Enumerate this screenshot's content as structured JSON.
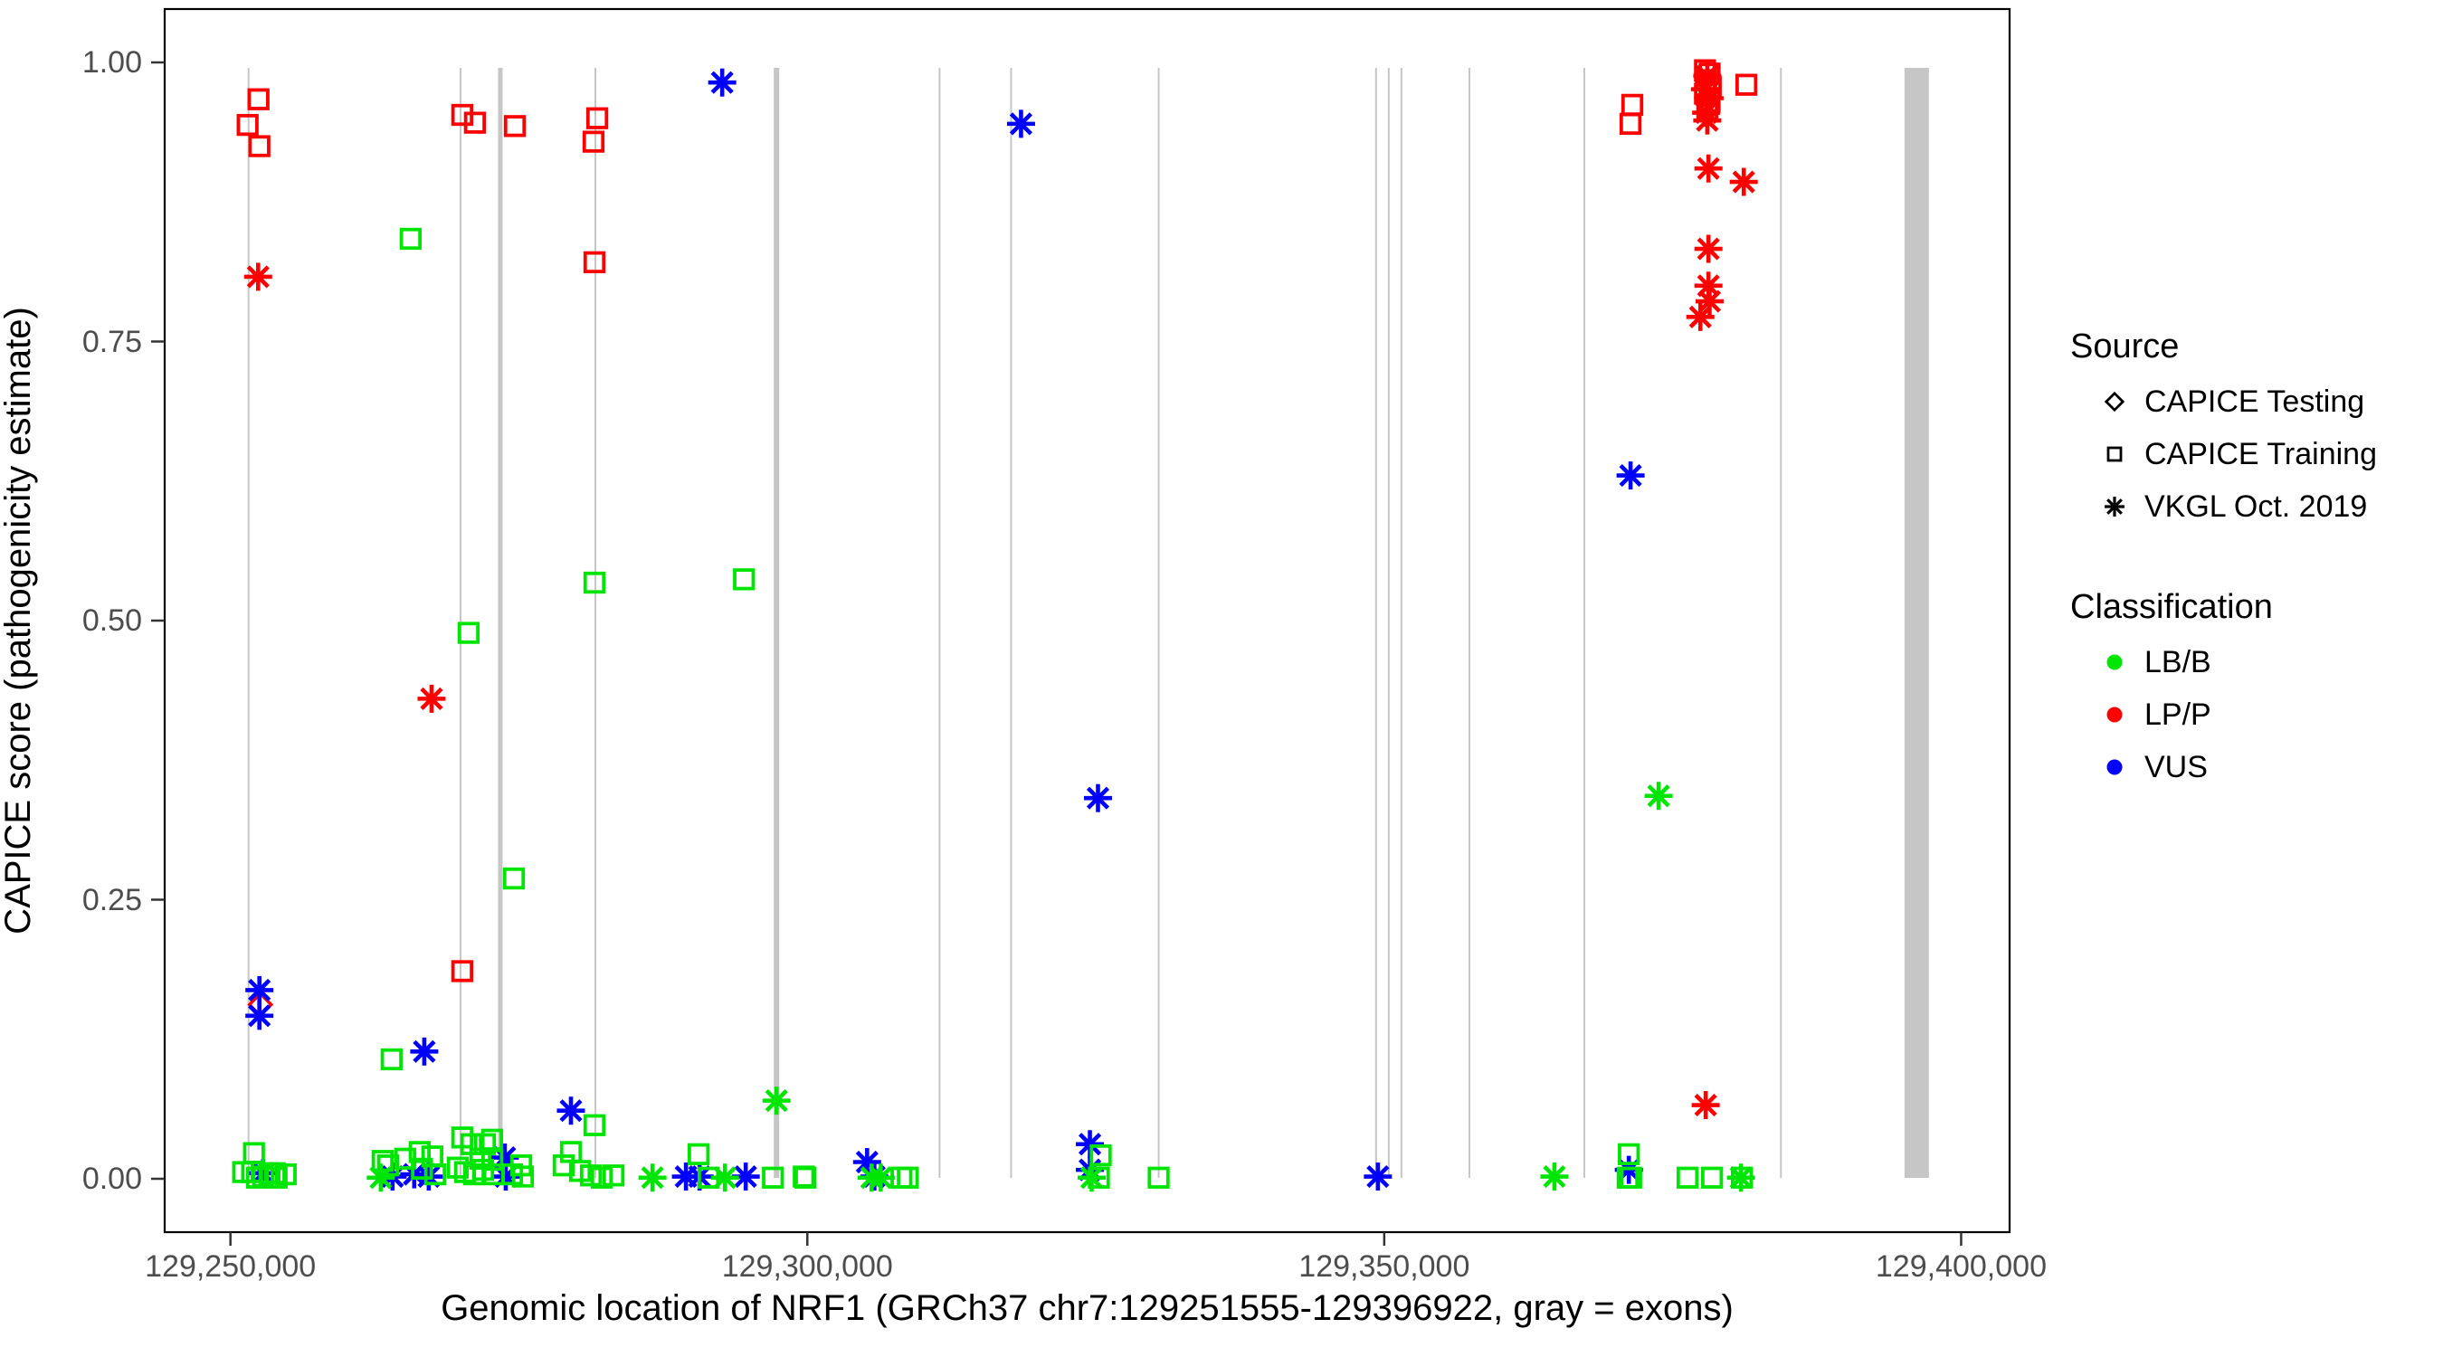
{
  "chart_data": {
    "type": "scatter",
    "xlabel": "Genomic location of NRF1 (GRCh37 chr7:129251555-129396922, gray = exons)",
    "ylabel": "CAPICE score (pathogenicity estimate)",
    "xlim": [
      129244300,
      129404200
    ],
    "ylim": [
      -0.048,
      1.048
    ],
    "grid": "off",
    "x_ticks": [
      {
        "value": 129250000,
        "label": "129,250,000"
      },
      {
        "value": 129300000,
        "label": "129,300,000"
      },
      {
        "value": 129350000,
        "label": "129,350,000"
      },
      {
        "value": 129400000,
        "label": "129,400,000"
      }
    ],
    "y_ticks": [
      {
        "value": 0.0,
        "label": "0.00"
      },
      {
        "value": 0.25,
        "label": "0.25"
      },
      {
        "value": 0.5,
        "label": "0.50"
      },
      {
        "value": 0.75,
        "label": "0.75"
      },
      {
        "value": 1.0,
        "label": "1.00"
      }
    ],
    "legend": {
      "position": "right",
      "source": {
        "title": "Source",
        "items": [
          {
            "label": "CAPICE Testing",
            "marker": "diamond"
          },
          {
            "label": "CAPICE Training",
            "marker": "square"
          },
          {
            "label": "VKGL Oct. 2019",
            "marker": "asterisk"
          }
        ]
      },
      "classification": {
        "title": "Classification",
        "items": [
          {
            "label": "LB/B",
            "color": "#00E504"
          },
          {
            "label": "LP/P",
            "color": "#FF0000"
          },
          {
            "label": "VUS",
            "color": "#0000FF"
          }
        ]
      }
    },
    "colors": {
      "LB/B": "#00E504",
      "LP/P": "#FF0000",
      "VUS": "#0000FF",
      "exon": "#C6C6C6",
      "axis_text": "#4D4D4D",
      "panel_border": "#000000"
    },
    "exons_note": "gray vertical bars = exons; position_bp with pixel width class",
    "exons": [
      {
        "pos": 129251570,
        "w": 2
      },
      {
        "pos": 129269940,
        "w": 2
      },
      {
        "pos": 129273390,
        "w": 5
      },
      {
        "pos": 129281630,
        "w": 2
      },
      {
        "pos": 129297330,
        "w": 6
      },
      {
        "pos": 129311460,
        "w": 2
      },
      {
        "pos": 129317660,
        "w": 2
      },
      {
        "pos": 129330450,
        "w": 2
      },
      {
        "pos": 129349290,
        "w": 2
      },
      {
        "pos": 129350390,
        "w": 2
      },
      {
        "pos": 129351490,
        "w": 2
      },
      {
        "pos": 129357380,
        "w": 2
      },
      {
        "pos": 129367340,
        "w": 2
      },
      {
        "pos": 129384380,
        "w": 2
      },
      {
        "pos": 129396150,
        "w": 27
      }
    ],
    "marker_source_map": {
      "square": "CAPICE Training",
      "asterisk": "VKGL Oct. 2019",
      "diamond": "CAPICE Testing"
    },
    "point_format": [
      "position_bp",
      "capice_score",
      "marker",
      "classification"
    ],
    "points": [
      [
        129252430,
        0.967,
        "square",
        "LP/P"
      ],
      [
        129251490,
        0.944,
        "square",
        "LP/P"
      ],
      [
        129252510,
        0.925,
        "square",
        "LP/P"
      ],
      [
        129252400,
        0.808,
        "asterisk",
        "LP/P"
      ],
      [
        129252590,
        0.156,
        "diamond",
        "LP/P"
      ],
      [
        129270090,
        0.953,
        "square",
        "LP/P"
      ],
      [
        129271190,
        0.946,
        "square",
        "LP/P"
      ],
      [
        129274650,
        0.943,
        "square",
        "LP/P"
      ],
      [
        129281790,
        0.95,
        "square",
        "LP/P"
      ],
      [
        129281470,
        0.929,
        "square",
        "LP/P"
      ],
      [
        129281550,
        0.821,
        "square",
        "LP/P"
      ],
      [
        129267430,
        0.43,
        "asterisk",
        "LP/P"
      ],
      [
        129270090,
        0.186,
        "square",
        "LP/P"
      ],
      [
        129371500,
        0.962,
        "square",
        "LP/P"
      ],
      [
        129371350,
        0.945,
        "square",
        "LP/P"
      ],
      [
        129377800,
        0.993,
        "square",
        "LP/P"
      ],
      [
        129378200,
        0.99,
        "square",
        "LP/P"
      ],
      [
        129377900,
        0.984,
        "square",
        "LP/P"
      ],
      [
        129378300,
        0.978,
        "square",
        "LP/P"
      ],
      [
        129377800,
        0.972,
        "square",
        "LP/P"
      ],
      [
        129378200,
        0.965,
        "square",
        "LP/P"
      ],
      [
        129378000,
        0.958,
        "square",
        "LP/P"
      ],
      [
        129381390,
        0.98,
        "square",
        "LP/P"
      ],
      [
        129378000,
        0.988,
        "asterisk",
        "LP/P"
      ],
      [
        129377800,
        0.976,
        "asterisk",
        "LP/P"
      ],
      [
        129378200,
        0.968,
        "asterisk",
        "LP/P"
      ],
      [
        129377900,
        0.955,
        "asterisk",
        "LP/P"
      ],
      [
        129378000,
        0.948,
        "asterisk",
        "LP/P"
      ],
      [
        129378100,
        0.905,
        "asterisk",
        "LP/P"
      ],
      [
        129381160,
        0.893,
        "asterisk",
        "LP/P"
      ],
      [
        129378100,
        0.833,
        "asterisk",
        "LP/P"
      ],
      [
        129378100,
        0.8,
        "asterisk",
        "LP/P"
      ],
      [
        129378200,
        0.786,
        "asterisk",
        "LP/P"
      ],
      [
        129377400,
        0.772,
        "asterisk",
        "LP/P"
      ],
      [
        129377860,
        0.066,
        "asterisk",
        "LP/P"
      ],
      [
        129292620,
        0.982,
        "asterisk",
        "VUS"
      ],
      [
        129318520,
        0.945,
        "asterisk",
        "VUS"
      ],
      [
        129371350,
        0.63,
        "asterisk",
        "VUS"
      ],
      [
        129325190,
        0.341,
        "asterisk",
        "VUS"
      ],
      [
        129252510,
        0.169,
        "asterisk",
        "VUS"
      ],
      [
        129252510,
        0.146,
        "asterisk",
        "VUS"
      ],
      [
        129266800,
        0.114,
        "asterisk",
        "VUS"
      ],
      [
        129279510,
        0.061,
        "asterisk",
        "VUS"
      ],
      [
        129324490,
        0.031,
        "asterisk",
        "VUS"
      ],
      [
        129324490,
        0.008,
        "asterisk",
        "VUS"
      ],
      [
        129273780,
        0.019,
        "asterisk",
        "VUS"
      ],
      [
        129252830,
        0.005,
        "asterisk",
        "VUS"
      ],
      [
        129264050,
        0.002,
        "asterisk",
        "VUS"
      ],
      [
        129265930,
        0.004,
        "asterisk",
        "VUS"
      ],
      [
        129267190,
        0.002,
        "asterisk",
        "VUS"
      ],
      [
        129273860,
        0.002,
        "asterisk",
        "VUS"
      ],
      [
        129289480,
        0.002,
        "asterisk",
        "VUS"
      ],
      [
        129290660,
        0.002,
        "asterisk",
        "VUS"
      ],
      [
        129294660,
        0.002,
        "asterisk",
        "VUS"
      ],
      [
        129305180,
        0.015,
        "asterisk",
        "VUS"
      ],
      [
        129305810,
        0.002,
        "asterisk",
        "VUS"
      ],
      [
        129349450,
        0.002,
        "asterisk",
        "VUS"
      ],
      [
        129371200,
        0.008,
        "asterisk",
        "VUS"
      ],
      [
        129265620,
        0.842,
        "square",
        "LB/B"
      ],
      [
        129270640,
        0.489,
        "square",
        "LB/B"
      ],
      [
        129281550,
        0.534,
        "square",
        "LB/B"
      ],
      [
        129294510,
        0.537,
        "square",
        "LB/B"
      ],
      [
        129274570,
        0.269,
        "square",
        "LB/B"
      ],
      [
        129263970,
        0.107,
        "square",
        "LB/B"
      ],
      [
        129281550,
        0.048,
        "square",
        "LB/B"
      ],
      [
        129279510,
        0.024,
        "square",
        "LB/B"
      ],
      [
        129252040,
        0.023,
        "square",
        "LB/B"
      ],
      [
        129251100,
        0.006,
        "square",
        "LB/B"
      ],
      [
        129251880,
        0.006,
        "square",
        "LB/B"
      ],
      [
        129252830,
        0.002,
        "square",
        "LB/B"
      ],
      [
        129253380,
        0.005,
        "square",
        "LB/B"
      ],
      [
        129253850,
        0.005,
        "square",
        "LB/B"
      ],
      [
        129254790,
        0.004,
        "square",
        "LB/B"
      ],
      [
        129254000,
        0.001,
        "square",
        "LB/B"
      ],
      [
        129252300,
        0.001,
        "square",
        "LB/B"
      ],
      [
        129263190,
        0.016,
        "square",
        "LB/B"
      ],
      [
        129263660,
        0.012,
        "square",
        "LB/B"
      ],
      [
        129265150,
        0.018,
        "square",
        "LB/B"
      ],
      [
        129266400,
        0.024,
        "square",
        "LB/B"
      ],
      [
        129267500,
        0.02,
        "square",
        "LB/B"
      ],
      [
        129266600,
        0.009,
        "square",
        "LB/B"
      ],
      [
        129267740,
        0.004,
        "square",
        "LB/B"
      ],
      [
        129270090,
        0.037,
        "square",
        "LB/B"
      ],
      [
        129270880,
        0.031,
        "square",
        "LB/B"
      ],
      [
        129272060,
        0.031,
        "square",
        "LB/B"
      ],
      [
        129272680,
        0.035,
        "square",
        "LB/B"
      ],
      [
        129271660,
        0.018,
        "square",
        "LB/B"
      ],
      [
        129272700,
        0.017,
        "square",
        "LB/B"
      ],
      [
        129269700,
        0.01,
        "square",
        "LB/B"
      ],
      [
        129270330,
        0.006,
        "square",
        "LB/B"
      ],
      [
        129271110,
        0.004,
        "square",
        "LB/B"
      ],
      [
        129271900,
        0.008,
        "square",
        "LB/B"
      ],
      [
        129272840,
        0.004,
        "square",
        "LB/B"
      ],
      [
        129274410,
        0.004,
        "square",
        "LB/B"
      ],
      [
        129275200,
        0.012,
        "square",
        "LB/B"
      ],
      [
        129275350,
        0.002,
        "square",
        "LB/B"
      ],
      [
        129278880,
        0.012,
        "square",
        "LB/B"
      ],
      [
        129280300,
        0.007,
        "square",
        "LB/B"
      ],
      [
        129281240,
        0.003,
        "square",
        "LB/B"
      ],
      [
        129282180,
        0.001,
        "square",
        "LB/B"
      ],
      [
        129283200,
        0.003,
        "square",
        "LB/B"
      ],
      [
        129290580,
        0.022,
        "square",
        "LB/B"
      ],
      [
        129291440,
        0.001,
        "square",
        "LB/B"
      ],
      [
        129297020,
        0.001,
        "square",
        "LB/B"
      ],
      [
        129299690,
        0.002,
        "square",
        "LB/B"
      ],
      [
        129299840,
        0.001,
        "square",
        "LB/B"
      ],
      [
        129308160,
        0.001,
        "square",
        "LB/B"
      ],
      [
        129308710,
        0.001,
        "square",
        "LB/B"
      ],
      [
        129325270,
        0.001,
        "square",
        "LB/B"
      ],
      [
        129325430,
        0.021,
        "square",
        "LB/B"
      ],
      [
        129330450,
        0.001,
        "square",
        "LB/B"
      ],
      [
        129371200,
        0.022,
        "square",
        "LB/B"
      ],
      [
        129371100,
        0.001,
        "square",
        "LB/B"
      ],
      [
        129371400,
        0.001,
        "square",
        "LB/B"
      ],
      [
        129376290,
        0.001,
        "square",
        "LB/B"
      ],
      [
        129378410,
        0.001,
        "square",
        "LB/B"
      ],
      [
        129381000,
        0.001,
        "square",
        "LB/B"
      ],
      [
        129297330,
        0.07,
        "asterisk",
        "LB/B"
      ],
      [
        129373780,
        0.343,
        "asterisk",
        "LB/B"
      ],
      [
        129263030,
        0.001,
        "asterisk",
        "LB/B"
      ],
      [
        129286580,
        0.001,
        "asterisk",
        "LB/B"
      ],
      [
        129292860,
        0.001,
        "asterisk",
        "LB/B"
      ],
      [
        129305570,
        0.001,
        "asterisk",
        "LB/B"
      ],
      [
        129306360,
        0.001,
        "asterisk",
        "LB/B"
      ],
      [
        129324640,
        0.001,
        "asterisk",
        "LB/B"
      ],
      [
        129364750,
        0.002,
        "asterisk",
        "LB/B"
      ],
      [
        129380920,
        0.001,
        "asterisk",
        "LB/B"
      ]
    ]
  }
}
